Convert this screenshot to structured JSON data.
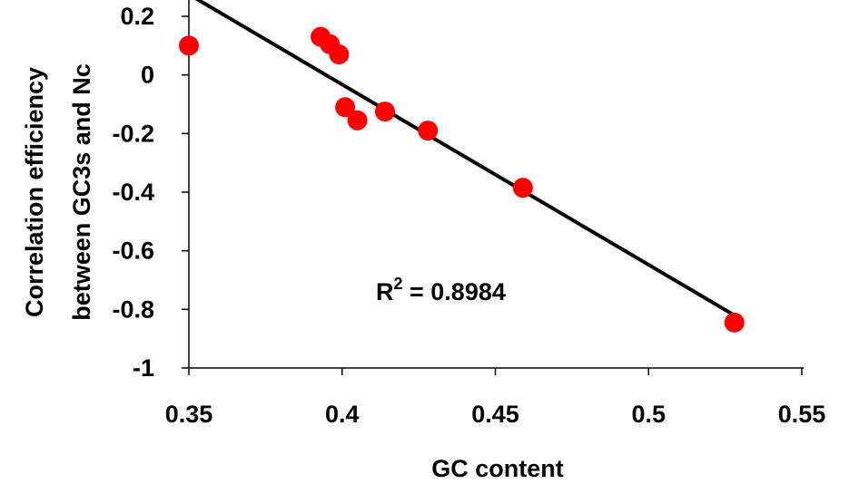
{
  "chart_data": {
    "type": "scatter",
    "title": "",
    "xlabel": "GC content",
    "ylabel_lines": [
      "Correlation efficiency",
      "between GC3s and Nc"
    ],
    "xlim": [
      0.35,
      0.55
    ],
    "ylim": [
      -1,
      0.2
    ],
    "x_ticks": [
      0.35,
      0.4,
      0.45,
      0.5,
      0.55
    ],
    "x_tick_labels": [
      "0.35",
      "0.4",
      "0.45",
      "0.5",
      "0.55"
    ],
    "y_ticks": [
      0.2,
      0,
      -0.2,
      -0.4,
      -0.6,
      -0.8,
      -1
    ],
    "y_tick_labels": [
      "0.2",
      "0",
      "-0.2",
      "-0.4",
      "-0.6",
      "-0.8",
      "-1"
    ],
    "grid": false,
    "marker_color": "#ff0000",
    "line_color": "#000000",
    "points": [
      {
        "x": 0.35,
        "y": 0.1
      },
      {
        "x": 0.393,
        "y": 0.13
      },
      {
        "x": 0.396,
        "y": 0.105
      },
      {
        "x": 0.399,
        "y": 0.07
      },
      {
        "x": 0.401,
        "y": -0.11
      },
      {
        "x": 0.405,
        "y": -0.155
      },
      {
        "x": 0.414,
        "y": -0.125
      },
      {
        "x": 0.428,
        "y": -0.19
      },
      {
        "x": 0.459,
        "y": -0.385
      },
      {
        "x": 0.528,
        "y": -0.845
      }
    ],
    "trendline": {
      "x": [
        0.35,
        0.528
      ],
      "y": [
        0.275,
        -0.82
      ]
    },
    "annotation": {
      "text_main": "R",
      "superscript": "2",
      "text_rest": " = 0.8984",
      "x": 0.43,
      "y": -0.74
    }
  }
}
